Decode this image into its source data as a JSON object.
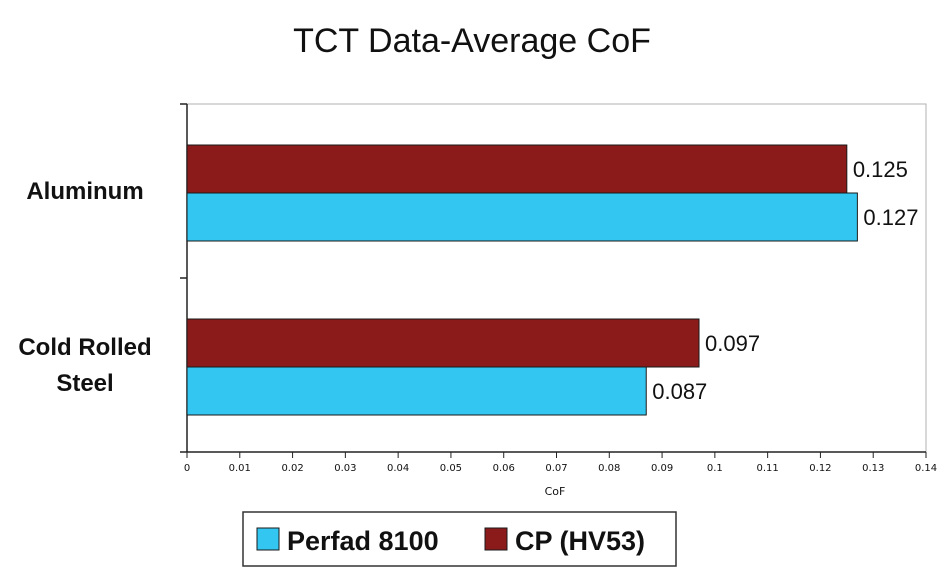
{
  "chart_data": {
    "type": "bar",
    "orientation": "horizontal",
    "title": "TCT Data-Average CoF",
    "xlabel": "CoF",
    "ylabel": "",
    "xlim": [
      0,
      0.14
    ],
    "x_ticks": [
      "0",
      "0.01",
      "0.02",
      "0.03",
      "0.04",
      "0.05",
      "0.06",
      "0.07",
      "0.08",
      "0.09",
      "0.1",
      "0.11",
      "0.12",
      "0.13",
      "0.14"
    ],
    "categories": [
      "Aluminum",
      "Cold Rolled Steel"
    ],
    "category_lines": [
      [
        "Aluminum"
      ],
      [
        "Cold Rolled",
        "Steel"
      ]
    ],
    "series": [
      {
        "name": "Perfad 8100",
        "values": [
          0.127,
          0.087
        ],
        "labels": [
          "0.127",
          "0.087"
        ],
        "color": "#33c6f0"
      },
      {
        "name": "CP (HV53)",
        "values": [
          0.125,
          0.097
        ],
        "labels": [
          "0.125",
          "0.097"
        ],
        "color": "#8b1a1a"
      }
    ],
    "grid": false,
    "legend_position": "bottom"
  }
}
